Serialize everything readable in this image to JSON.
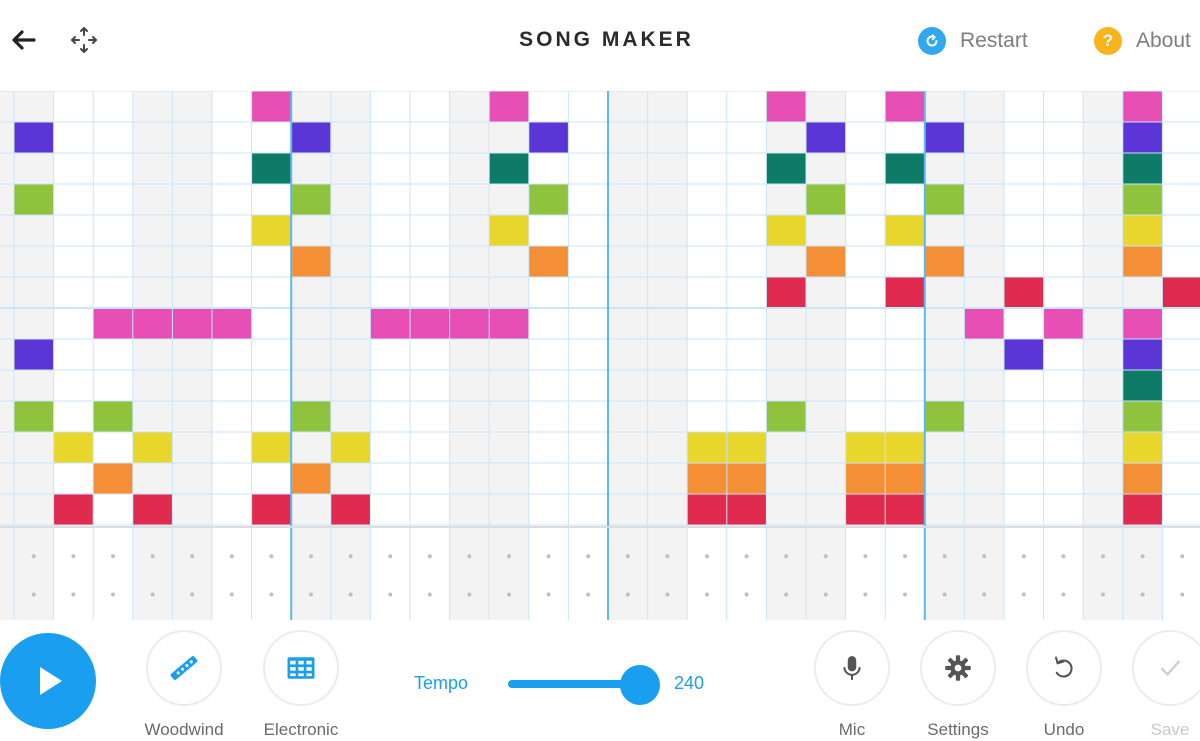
{
  "header": {
    "title": "SONG MAKER",
    "restart_label": "Restart",
    "about_label": "About"
  },
  "footer": {
    "tools": [
      {
        "key": "woodwind",
        "label": "Woodwind",
        "icon": "woodwind-icon"
      },
      {
        "key": "electronic",
        "label": "Electronic",
        "icon": "electronic-grid-icon"
      },
      {
        "key": "mic",
        "label": "Mic",
        "icon": "mic-icon"
      },
      {
        "key": "settings",
        "label": "Settings",
        "icon": "gear-icon"
      },
      {
        "key": "undo",
        "label": "Undo",
        "icon": "undo-icon"
      },
      {
        "key": "save",
        "label": "Save",
        "icon": "check-icon"
      }
    ],
    "tempo_label": "Tempo",
    "tempo_value": "240",
    "tempo_level": 1.0
  },
  "colors": {
    "accent": "#1a9ff0",
    "grid_line": "#c7e6fb",
    "bar_line": "#5cb8f4",
    "shaded_column": "#f3f3f3",
    "note_colors": [
      "#e74fb4",
      "#5b35d5",
      "#0e7b67",
      "#8fc23d",
      "#e8d62c",
      "#f48f35",
      "#e02b4e"
    ]
  },
  "grid": {
    "columns": 30,
    "melody_rows": 14,
    "notes": [
      {
        "row": 0,
        "col": 6
      },
      {
        "row": 0,
        "col": 12
      },
      {
        "row": 0,
        "col": 19
      },
      {
        "row": 0,
        "col": 22
      },
      {
        "row": 0,
        "col": 28
      },
      {
        "row": 1,
        "col": 0
      },
      {
        "row": 1,
        "col": 7
      },
      {
        "row": 1,
        "col": 13
      },
      {
        "row": 1,
        "col": 20
      },
      {
        "row": 1,
        "col": 23
      },
      {
        "row": 1,
        "col": 28
      },
      {
        "row": 2,
        "col": 6
      },
      {
        "row": 2,
        "col": 12
      },
      {
        "row": 2,
        "col": 19
      },
      {
        "row": 2,
        "col": 22
      },
      {
        "row": 2,
        "col": 28
      },
      {
        "row": 3,
        "col": 0
      },
      {
        "row": 3,
        "col": 7
      },
      {
        "row": 3,
        "col": 13
      },
      {
        "row": 3,
        "col": 20
      },
      {
        "row": 3,
        "col": 23
      },
      {
        "row": 3,
        "col": 28
      },
      {
        "row": 4,
        "col": 6
      },
      {
        "row": 4,
        "col": 12
      },
      {
        "row": 4,
        "col": 19
      },
      {
        "row": 4,
        "col": 22
      },
      {
        "row": 4,
        "col": 28
      },
      {
        "row": 5,
        "col": 7
      },
      {
        "row": 5,
        "col": 13
      },
      {
        "row": 5,
        "col": 20
      },
      {
        "row": 5,
        "col": 23
      },
      {
        "row": 5,
        "col": 28
      },
      {
        "row": 6,
        "col": 19
      },
      {
        "row": 6,
        "col": 22
      },
      {
        "row": 6,
        "col": 25
      },
      {
        "row": 6,
        "col": 29
      },
      {
        "row": 7,
        "col": 2
      },
      {
        "row": 7,
        "col": 3
      },
      {
        "row": 7,
        "col": 4
      },
      {
        "row": 7,
        "col": 5
      },
      {
        "row": 7,
        "col": 9
      },
      {
        "row": 7,
        "col": 10
      },
      {
        "row": 7,
        "col": 11
      },
      {
        "row": 7,
        "col": 12
      },
      {
        "row": 7,
        "col": 24
      },
      {
        "row": 7,
        "col": 26
      },
      {
        "row": 7,
        "col": 28
      },
      {
        "row": 8,
        "col": 0
      },
      {
        "row": 8,
        "col": 25
      },
      {
        "row": 8,
        "col": 28
      },
      {
        "row": 9,
        "col": 28
      },
      {
        "row": 10,
        "col": 0
      },
      {
        "row": 10,
        "col": 2
      },
      {
        "row": 10,
        "col": 7
      },
      {
        "row": 10,
        "col": 19
      },
      {
        "row": 10,
        "col": 23
      },
      {
        "row": 10,
        "col": 28
      },
      {
        "row": 11,
        "col": 1
      },
      {
        "row": 11,
        "col": 3
      },
      {
        "row": 11,
        "col": 6
      },
      {
        "row": 11,
        "col": 8
      },
      {
        "row": 11,
        "col": 17
      },
      {
        "row": 11,
        "col": 18
      },
      {
        "row": 11,
        "col": 21
      },
      {
        "row": 11,
        "col": 22
      },
      {
        "row": 11,
        "col": 28
      },
      {
        "row": 12,
        "col": 2
      },
      {
        "row": 12,
        "col": 7
      },
      {
        "row": 12,
        "col": 17
      },
      {
        "row": 12,
        "col": 18
      },
      {
        "row": 12,
        "col": 21
      },
      {
        "row": 12,
        "col": 22
      },
      {
        "row": 12,
        "col": 28
      },
      {
        "row": 13,
        "col": 1
      },
      {
        "row": 13,
        "col": 3
      },
      {
        "row": 13,
        "col": 6
      },
      {
        "row": 13,
        "col": 8
      },
      {
        "row": 13,
        "col": 17
      },
      {
        "row": 13,
        "col": 18
      },
      {
        "row": 13,
        "col": 21
      },
      {
        "row": 13,
        "col": 22
      },
      {
        "row": 13,
        "col": 28
      }
    ]
  }
}
